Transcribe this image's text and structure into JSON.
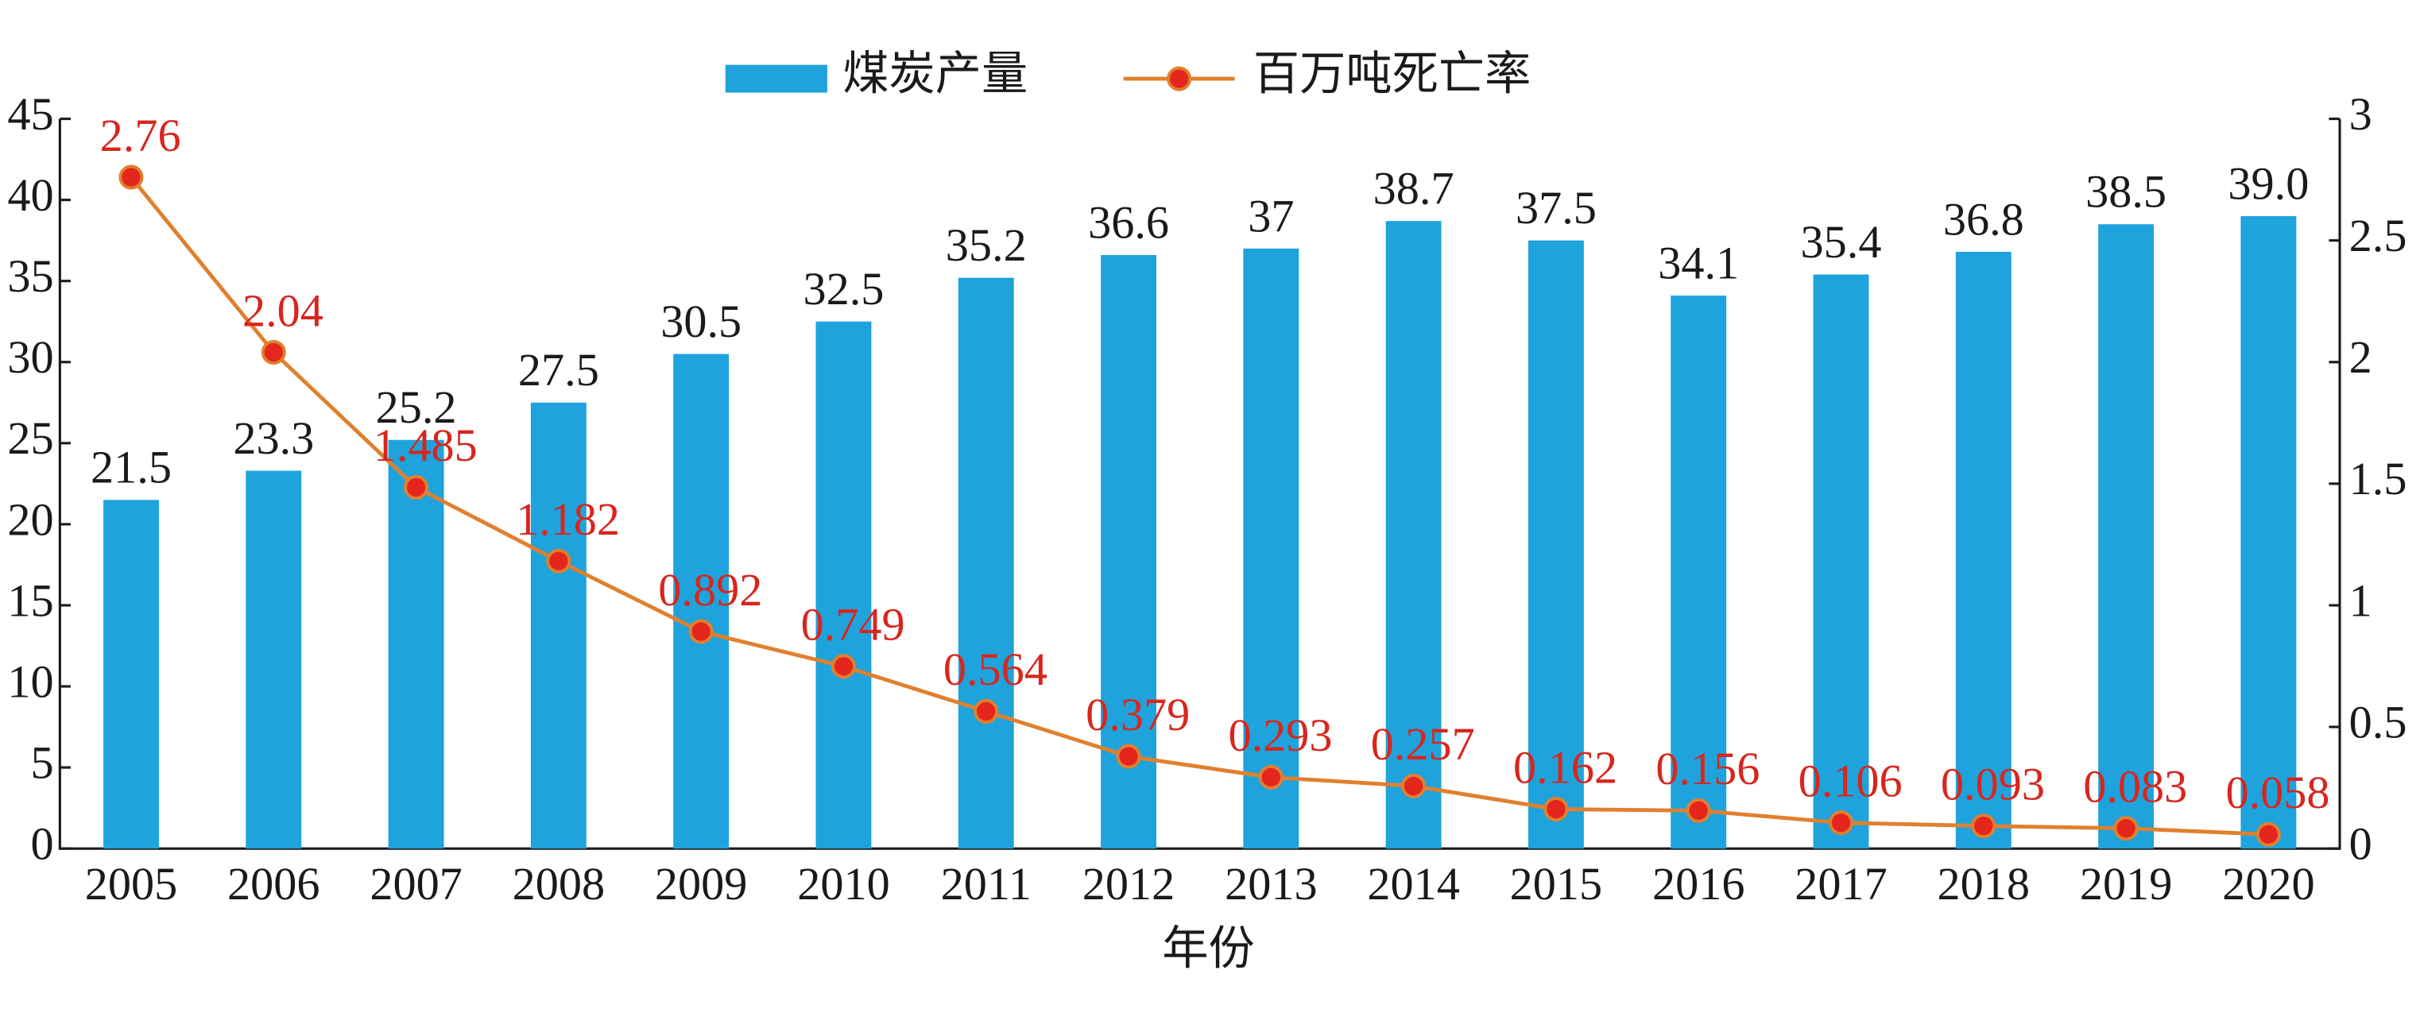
{
  "chart_data": {
    "type": "bar_line",
    "x_label": "年份",
    "categories": [
      "2005",
      "2006",
      "2007",
      "2008",
      "2009",
      "2010",
      "2011",
      "2012",
      "2013",
      "2014",
      "2015",
      "2016",
      "2017",
      "2018",
      "2019",
      "2020"
    ],
    "series": [
      {
        "name": "煤炭产量",
        "color": "#1fa3dc",
        "values": [
          21.5,
          23.3,
          25.2,
          27.5,
          30.5,
          32.5,
          35.2,
          36.6,
          37,
          38.7,
          37.5,
          34.1,
          35.4,
          36.8,
          38.5,
          39.0
        ],
        "value_labels": [
          "21.5",
          "23.3",
          "25.2",
          "27.5",
          "30.5",
          "32.5",
          "35.2",
          "36.6",
          "37",
          "38.7",
          "37.5",
          "34.1",
          "35.4",
          "36.8",
          "38.5",
          "39.0"
        ]
      },
      {
        "name": "百万吨死亡率",
        "color": "#e0802e",
        "marker_color": "#e4261d",
        "label_color": "#d8261d",
        "axis": "y2",
        "values": [
          2.76,
          2.04,
          1.485,
          1.182,
          0.892,
          0.749,
          0.564,
          0.379,
          0.293,
          0.257,
          0.162,
          0.156,
          0.106,
          0.093,
          0.083,
          0.058
        ]
      }
    ],
    "ylim": [
      0,
      45
    ],
    "yticks": [
      0,
      5,
      10,
      15,
      20,
      25,
      30,
      35,
      40,
      45
    ],
    "y2lim": [
      0,
      3
    ],
    "y2ticks": [
      0,
      0.5,
      1,
      1.5,
      2,
      2.5,
      3
    ],
    "legend": "top"
  }
}
